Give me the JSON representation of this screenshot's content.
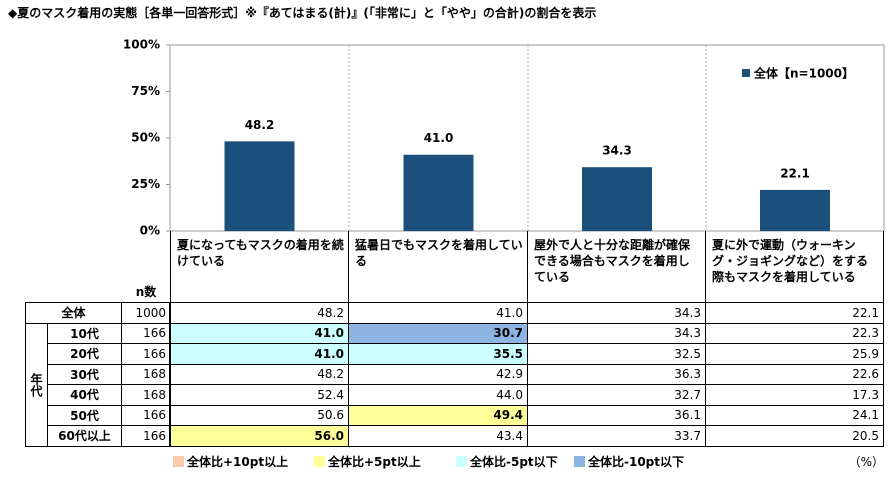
{
  "chart_data": {
    "type": "bar",
    "title": "◆夏のマスク着用の実態［各単一回答形式］※『あてはまる(計)』(「非常に」と「やや」の合計)の割合を表示",
    "categories": [
      "夏になってもマスクの着用を続けている",
      "猛暑日でもマスクを着用している",
      "屋外で人と十分な距離が確保できる場合もマスクを着用している",
      "夏に外で運動（ウォーキング・ジョギングなど）をする際もマスクを着用している"
    ],
    "series": [
      {
        "name": "全体【n=1000】",
        "color": "#1b4f7c",
        "values": [
          48.2,
          41.0,
          34.3,
          22.1
        ],
        "value_labels": [
          "48.2",
          "41.0",
          "34.3",
          "22.1"
        ]
      }
    ],
    "ylim": [
      0,
      100
    ],
    "yticks": [
      {
        "value": 0,
        "label": "0%"
      },
      {
        "value": 25,
        "label": "25%"
      },
      {
        "value": 50,
        "label": "50%"
      },
      {
        "value": 75,
        "label": "75%"
      },
      {
        "value": 100,
        "label": "100%"
      }
    ],
    "legend": "top-right"
  },
  "table": {
    "n_header": "n数",
    "group_label": "年代",
    "unit": "（%）",
    "total_row": {
      "label": "全体",
      "n": 1000,
      "cells": [
        {
          "value": "48.2"
        },
        {
          "value": "41.0"
        },
        {
          "value": "34.3"
        },
        {
          "value": "22.1"
        }
      ]
    },
    "age_rows": [
      {
        "label": "10代",
        "n": 166,
        "cells": [
          {
            "value": "41.0",
            "color": "#ccffff"
          },
          {
            "value": "30.7",
            "color": "#8db4e2"
          },
          {
            "value": "34.3"
          },
          {
            "value": "22.3"
          }
        ]
      },
      {
        "label": "20代",
        "n": 166,
        "cells": [
          {
            "value": "41.0",
            "color": "#ccffff"
          },
          {
            "value": "35.5",
            "color": "#ccffff"
          },
          {
            "value": "32.5"
          },
          {
            "value": "25.9"
          }
        ]
      },
      {
        "label": "30代",
        "n": 168,
        "cells": [
          {
            "value": "48.2"
          },
          {
            "value": "42.9"
          },
          {
            "value": "36.3"
          },
          {
            "value": "22.6"
          }
        ]
      },
      {
        "label": "40代",
        "n": 168,
        "cells": [
          {
            "value": "52.4"
          },
          {
            "value": "44.0"
          },
          {
            "value": "32.7"
          },
          {
            "value": "17.3"
          }
        ]
      },
      {
        "label": "50代",
        "n": 166,
        "cells": [
          {
            "value": "50.6"
          },
          {
            "value": "49.4",
            "color": "#ffff99"
          },
          {
            "value": "36.1"
          },
          {
            "value": "24.1"
          }
        ]
      },
      {
        "label": "60代以上",
        "n": 166,
        "cells": [
          {
            "value": "56.0",
            "color": "#ffff99"
          },
          {
            "value": "43.4"
          },
          {
            "value": "33.7"
          },
          {
            "value": "20.5"
          }
        ]
      }
    ],
    "highlight_legend": [
      {
        "label": "全体比+10pt以上",
        "color": "#f8cbad"
      },
      {
        "label": "全体比+5pt以上",
        "color": "#ffff99"
      },
      {
        "label": "全体比-5pt以下",
        "color": "#ccffff"
      },
      {
        "label": "全体比-10pt以下",
        "color": "#8db4e2"
      }
    ]
  }
}
